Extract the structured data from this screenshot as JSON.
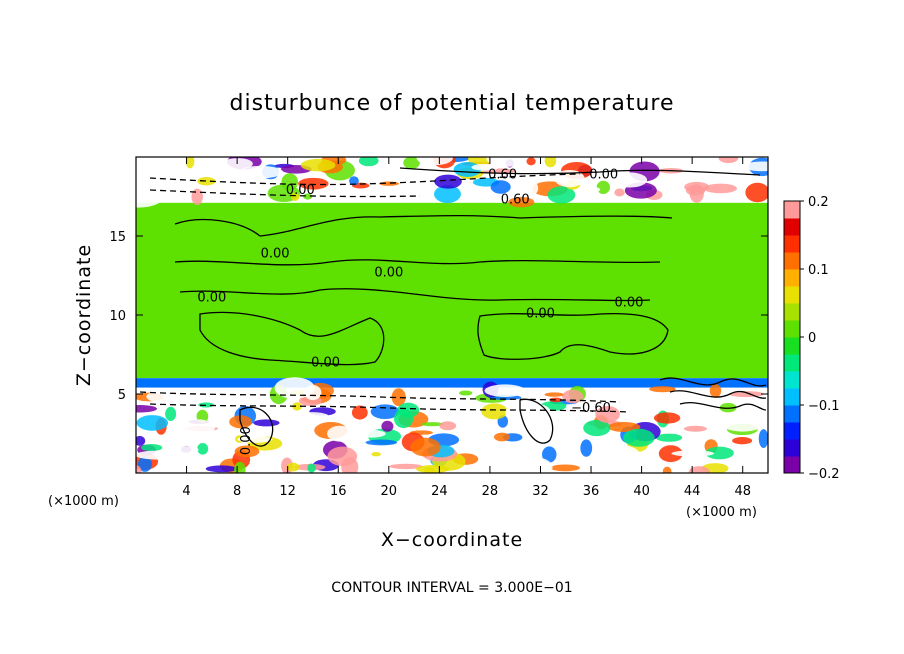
{
  "chart_data": {
    "type": "heatmap",
    "title": "disturbunce of potential temperature",
    "xlabel": "X−coordinate",
    "ylabel": "Z−coordinate",
    "x_unit": "(×1000 m)",
    "y_unit": "(×1000 m)",
    "xlim": [
      0,
      50
    ],
    "ylim": [
      0,
      20
    ],
    "xticks": [
      4,
      8,
      12,
      16,
      20,
      24,
      28,
      32,
      36,
      40,
      44,
      48
    ],
    "yticks": [
      5,
      10,
      15
    ],
    "colorbar": {
      "min": -0.2,
      "max": 0.2,
      "ticks": [
        0.2,
        0.1,
        0,
        -0.1,
        -0.2
      ],
      "tick_labels": [
        "0.2",
        "0.1",
        "0",
        "−0.1",
        "−0.2"
      ],
      "colors": [
        "#7a00a8",
        "#2e00d8",
        "#0020ff",
        "#0070ff",
        "#00bfff",
        "#00e5d0",
        "#00e87a",
        "#18e020",
        "#5ee000",
        "#a8e000",
        "#e8e000",
        "#ffb000",
        "#ff7000",
        "#ff3000",
        "#e00000",
        "#ff9a9a"
      ]
    },
    "contour_labels": [
      "0.60",
      "0.00",
      "0.60",
      "0.00",
      "0.00",
      "0.00",
      "0.00",
      "0.00",
      "0.00",
      "0.00",
      "0.00",
      "−0.60"
    ],
    "footer": "CONTOUR INTERVAL = 3.000E−01",
    "bands": [
      {
        "z_range": [
          17.1,
          20
        ],
        "description": "upper mixed region",
        "value": "mixed"
      },
      {
        "z_range": [
          6.0,
          17.1
        ],
        "value": 0.0
      },
      {
        "z_range": [
          5.4,
          6.0
        ],
        "value": -0.12
      },
      {
        "z_range": [
          0,
          5.4
        ],
        "description": "lower mixed region",
        "value": "mixed"
      }
    ]
  }
}
